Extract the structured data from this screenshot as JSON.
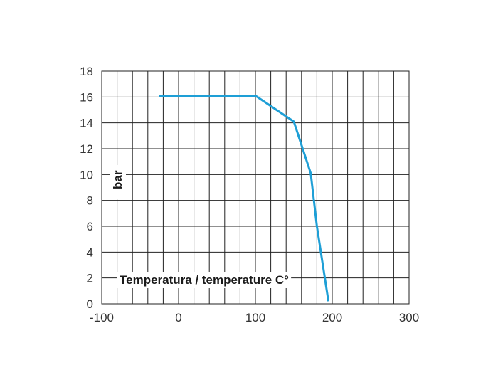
{
  "chart_data": {
    "type": "line",
    "title": "",
    "xlabel": "Temperatura / temperature C°",
    "ylabel": "bar",
    "xlim": [
      -100,
      300
    ],
    "ylim": [
      0,
      18
    ],
    "x_ticks": [
      "-100",
      "0",
      "100",
      "200",
      "300"
    ],
    "y_ticks": [
      "0",
      "2",
      "4",
      "6",
      "8",
      "10",
      "12",
      "14",
      "16",
      "18"
    ],
    "grid": true,
    "legend": "none",
    "series": [
      {
        "color": "#1e9fd6",
        "points": [
          {
            "x": -25,
            "y": 16.1
          },
          {
            "x": 100,
            "y": 16.1
          },
          {
            "x": 150,
            "y": 14.1
          },
          {
            "x": 172,
            "y": 10.1
          },
          {
            "x": 180,
            "y": 6.0
          },
          {
            "x": 195,
            "y": 0.2
          }
        ]
      }
    ]
  }
}
